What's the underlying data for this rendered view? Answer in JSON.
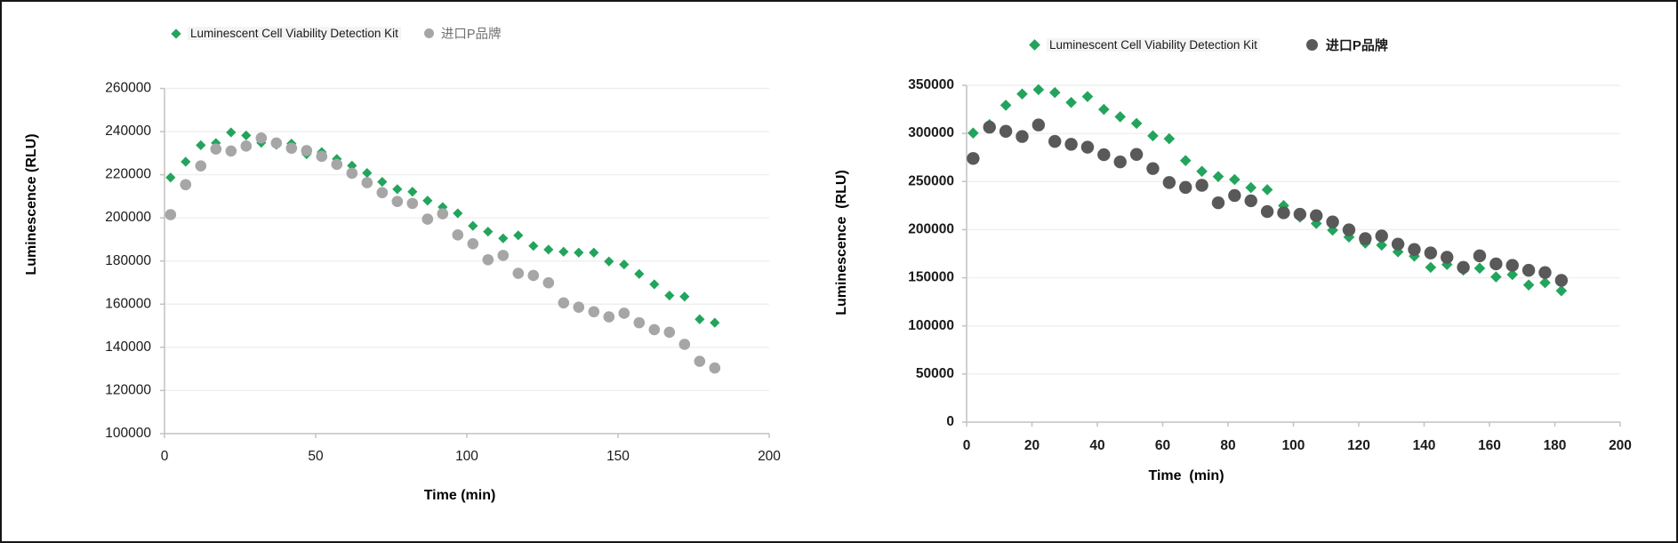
{
  "page": {
    "background": "#ffffff",
    "border_color": "#161616",
    "grid_color": "#efefef",
    "axis_color": "#c2c2c2",
    "text_color": "#1a1a1a"
  },
  "chart_data": [
    {
      "type": "scatter",
      "title": "",
      "xlabel": "Time (min)",
      "ylabel": "Luminescence (RLU)",
      "xlim": [
        0,
        200
      ],
      "ylim": [
        100000,
        260000
      ],
      "x_ticks": [
        0,
        50,
        100,
        150,
        200
      ],
      "y_tick_step": 20000,
      "grid": "horizontal",
      "legend_position": "top",
      "tick_weight": "normal",
      "x": [
        2,
        7,
        12,
        17,
        22,
        27,
        32,
        37,
        42,
        47,
        52,
        57,
        62,
        67,
        72,
        77,
        82,
        87,
        92,
        97,
        102,
        107,
        112,
        117,
        122,
        127,
        132,
        137,
        142,
        147,
        152,
        157,
        162,
        167,
        172,
        177,
        182
      ],
      "series": [
        {
          "name": "Luminescent Cell Viability Detection Kit",
          "marker": "diamond",
          "color": "#23a45c",
          "values": [
            218700,
            226000,
            233700,
            234700,
            239600,
            238200,
            234800,
            233900,
            234400,
            229500,
            230500,
            227300,
            224200,
            220800,
            216700,
            213300,
            212100,
            208000,
            205000,
            202100,
            196300,
            193600,
            190500,
            191900,
            187000,
            185300,
            184300,
            183900,
            183900,
            179800,
            178400,
            174000,
            169200,
            164000,
            163500,
            153000,
            151400
          ]
        },
        {
          "name": "进口P品牌",
          "marker": "circle",
          "color": "#a6a6a6",
          "values": [
            201500,
            215400,
            224100,
            231900,
            231000,
            233300,
            237000,
            234700,
            232300,
            231200,
            228500,
            224800,
            220700,
            216300,
            211700,
            207600,
            206700,
            199400,
            201900,
            192100,
            188000,
            180600,
            182600,
            174300,
            173300,
            169900,
            160600,
            158600,
            156500,
            154100,
            155800,
            151400,
            148200,
            147000,
            141400,
            133500,
            130400
          ]
        }
      ]
    },
    {
      "type": "scatter",
      "title": "",
      "xlabel": "Time  (min)",
      "ylabel": "Luminescence  (RLU)",
      "xlim": [
        0,
        200
      ],
      "ylim": [
        0,
        350000
      ],
      "x_ticks": [
        0,
        20,
        40,
        60,
        80,
        100,
        120,
        140,
        160,
        180,
        200
      ],
      "y_tick_step": 50000,
      "grid": "horizontal",
      "legend_position": "top",
      "tick_weight": "bold",
      "x": [
        2,
        7,
        12,
        17,
        22,
        27,
        32,
        37,
        42,
        47,
        52,
        57,
        62,
        67,
        72,
        77,
        82,
        87,
        92,
        97,
        102,
        107,
        112,
        117,
        122,
        127,
        132,
        137,
        142,
        147,
        152,
        157,
        162,
        167,
        172,
        177,
        182
      ],
      "series": [
        {
          "name": "Luminescent Cell Viability Detection Kit",
          "marker": "diamond",
          "color": "#23a45c",
          "values": [
            300400,
            309200,
            329300,
            341000,
            345500,
            342500,
            332200,
            338300,
            325000,
            317300,
            310400,
            297500,
            294500,
            271800,
            260600,
            255200,
            252100,
            243700,
            241500,
            225000,
            213000,
            206400,
            199500,
            192300,
            186000,
            183900,
            177000,
            172500,
            160800,
            163800,
            158000,
            159900,
            150900,
            153300,
            142500,
            144900,
            136500
          ]
        },
        {
          "name": "进口P品牌",
          "marker": "circle",
          "color": "#595959",
          "values": [
            274000,
            306500,
            302200,
            296800,
            308800,
            291700,
            288700,
            285700,
            277900,
            270400,
            278200,
            263500,
            249000,
            243900,
            246100,
            227900,
            235500,
            230000,
            218800,
            217500,
            216000,
            214500,
            208000,
            199800,
            190700,
            193500,
            185000,
            179400,
            175800,
            171300,
            160800,
            172800,
            164400,
            162900,
            157800,
            155400,
            147300
          ]
        }
      ]
    }
  ]
}
